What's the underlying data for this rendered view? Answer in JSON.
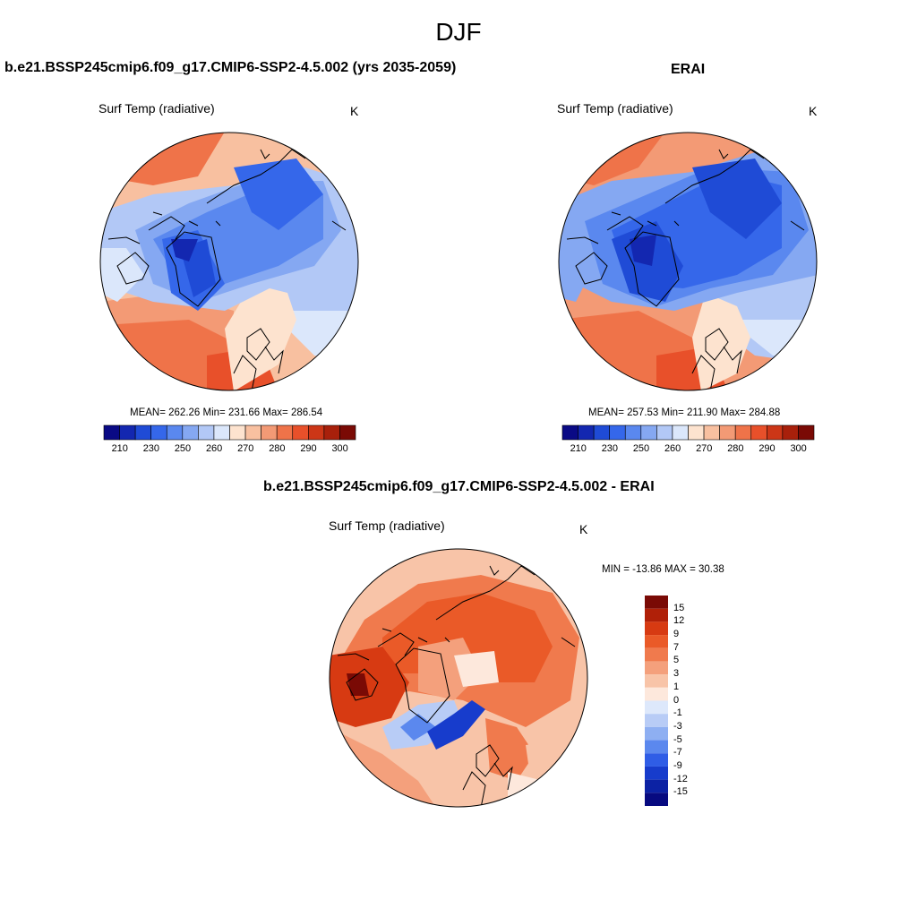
{
  "figure": {
    "title": "DJF"
  },
  "panels": {
    "model": {
      "title": "b.e21.BSSP245cmip6.f09_g17.CMIP6-SSP2-4.5.002 (yrs 2035-2059)",
      "variable": "Surf Temp (radiative)",
      "units": "K",
      "stats": "MEAN= 262.26  Min= 231.66  Max= 286.54",
      "mean": 262.26,
      "min": 231.66,
      "max": 286.54,
      "field": "cold-anomaly cores over Greenland and Arctic; warm Atlantic/Pacific sectors"
    },
    "obs": {
      "title": "ERAI",
      "variable": "Surf Temp (radiative)",
      "units": "K",
      "stats": "MEAN= 257.53  Min= 211.90  Max= 284.88",
      "mean": 257.53,
      "min": 211.9,
      "max": 284.88
    },
    "diff": {
      "title": "b.e21.BSSP245cmip6.f09_g17.CMIP6-SSP2-4.5.002 - ERAI",
      "variable": "Surf Temp (radiative)",
      "units": "K",
      "stats": "MIN = -13.86 MAX =  30.38",
      "min": -13.86,
      "max": 30.38
    }
  },
  "colorbars": {
    "abs": {
      "colors": [
        "#0a0a85",
        "#1327b0",
        "#1f4bd6",
        "#3567ea",
        "#5a88ef",
        "#85a8f2",
        "#b2c8f6",
        "#dbe7fb",
        "#fde3cf",
        "#f8c0a0",
        "#f39a75",
        "#ef7349",
        "#e8502a",
        "#cc3617",
        "#a8200b",
        "#7a0a05"
      ],
      "tick_labels": [
        "210",
        "230",
        "250",
        "260",
        "270",
        "280",
        "290",
        "300"
      ]
    },
    "diff": {
      "colors": [
        "#7a0a05",
        "#b02008",
        "#d73a12",
        "#ea5a28",
        "#f07a4d",
        "#f4a07c",
        "#f8c4a8",
        "#fde8dc",
        "#dde8fb",
        "#b8ccf6",
        "#8eaff2",
        "#5b88ee",
        "#2f5de6",
        "#173ccc",
        "#0c22a4",
        "#070a80"
      ],
      "tick_labels": [
        "15",
        "12",
        "9",
        "7",
        "5",
        "3",
        "1",
        "0",
        "-1",
        "-3",
        "-5",
        "-7",
        "-9",
        "-12",
        "-15"
      ]
    }
  }
}
